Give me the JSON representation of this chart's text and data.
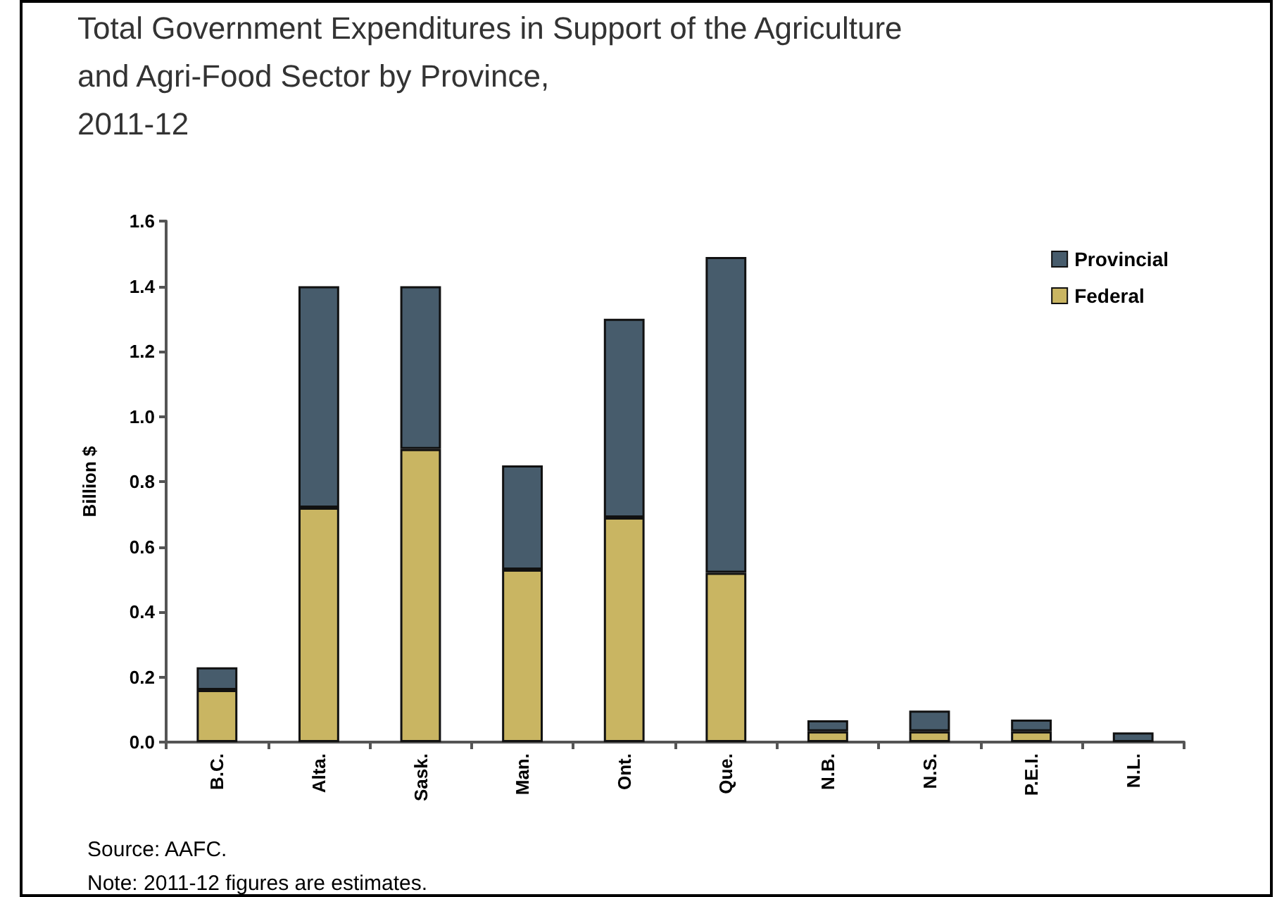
{
  "chart_data": {
    "type": "bar",
    "title": "Total Government Expenditures in Support of the Agriculture\nand Agri-Food Sector by Province,\n2011-12",
    "ylabel": "Billion $",
    "categories": [
      "B.C.",
      "Alta.",
      "Sask.",
      "Man.",
      "Ont.",
      "Que.",
      "N.B.",
      "N.S.",
      "P.E.I.",
      "N.L."
    ],
    "series": [
      {
        "name": "Federal",
        "color": "#c9b562",
        "values": [
          0.16,
          0.72,
          0.9,
          0.53,
          0.69,
          0.52,
          0.033,
          0.033,
          0.033,
          null
        ]
      },
      {
        "name": "Provincial",
        "color": "#475c6c",
        "values": [
          0.07,
          0.68,
          0.5,
          0.32,
          0.61,
          0.97,
          0.034,
          0.064,
          0.036,
          0.03
        ]
      }
    ],
    "stacked": true,
    "ylim": [
      0,
      1.6
    ],
    "yticks": [
      {
        "value": 0,
        "label": "0.0"
      },
      0.2,
      0.4,
      0.6,
      0.8,
      {
        "value": 1,
        "label": "1.0"
      },
      1.2,
      1.4,
      1.6
    ],
    "grid": false,
    "legend": "top right",
    "marker": "square",
    "annotations": [
      "Source: AAFC.",
      "Note: 2011-12 figures are estimates."
    ]
  }
}
